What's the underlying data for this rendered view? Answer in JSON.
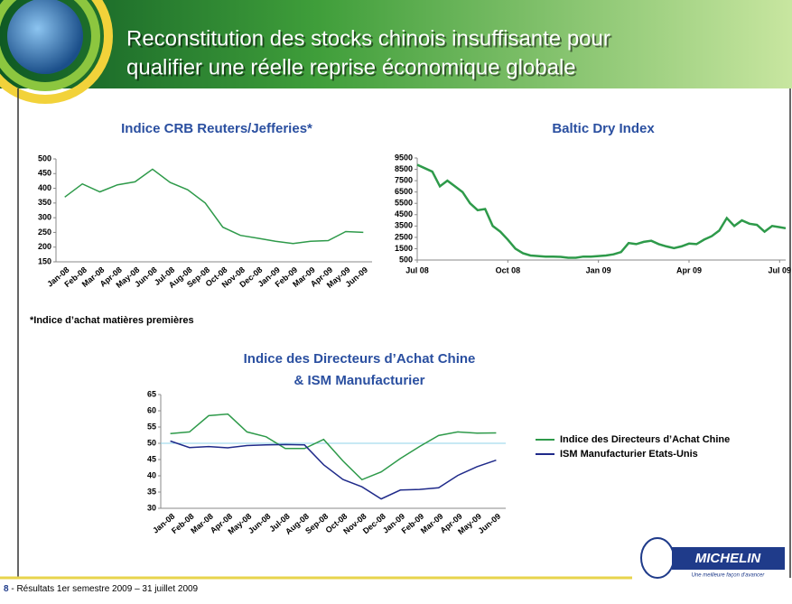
{
  "header": {
    "title_lines": [
      "Reconstitution des stocks chinois insuffisante pour",
      "qualifier  une réelle reprise économique globale"
    ]
  },
  "footnote": "*Indice d’achat matières premières",
  "footer": {
    "page": "8",
    "text": " - Résultats 1er semestre  2009 – 31 juillet 2009"
  },
  "logo": {
    "brand": "MICHELIN",
    "tagline": "Une meilleure façon d'avancer"
  },
  "chart_data": [
    {
      "type": "line",
      "title": "Indice CRB Reuters/Jefferies*",
      "categories": [
        "Jan-08",
        "Feb-08",
        "Mar-08",
        "Apr-08",
        "May-08",
        "Jun-08",
        "Jul-08",
        "Aug-08",
        "Sep-08",
        "Oct-08",
        "Nov-08",
        "Dec-08",
        "Jan-09",
        "Feb-09",
        "Mar-09",
        "Apr-09",
        "May-09",
        "Jun-09"
      ],
      "series": [
        {
          "color": "#2e9a4a",
          "values": [
            370,
            415,
            388,
            412,
            422,
            465,
            420,
            395,
            350,
            268,
            240,
            230,
            220,
            212,
            220,
            222,
            253,
            250
          ]
        }
      ],
      "ylim": [
        150,
        500
      ],
      "yticks": [
        150,
        200,
        250,
        300,
        350,
        400,
        450,
        500
      ]
    },
    {
      "type": "line",
      "title": "Baltic Dry Index",
      "x": [
        0,
        0.25,
        0.5,
        0.75,
        1,
        1.25,
        1.5,
        1.75,
        2,
        2.25,
        2.5,
        2.75,
        3,
        3.25,
        3.5,
        3.75,
        4,
        4.25,
        4.5,
        4.75,
        5,
        5.25,
        5.5,
        5.75,
        6,
        6.25,
        6.5,
        6.75,
        7,
        7.25,
        7.5,
        7.75,
        8,
        8.25,
        8.5,
        8.75,
        9,
        9.25,
        9.5,
        9.75,
        10,
        10.25,
        10.5,
        10.75,
        11,
        11.25,
        11.5,
        11.75,
        12,
        12.2
      ],
      "series": [
        {
          "color": "#2e9a4a",
          "values": [
            8900,
            8600,
            8300,
            7000,
            7500,
            7000,
            6500,
            5500,
            4900,
            5000,
            3500,
            3000,
            2300,
            1500,
            1100,
            900,
            850,
            800,
            800,
            780,
            700,
            700,
            800,
            800,
            850,
            900,
            1000,
            1200,
            2000,
            1900,
            2100,
            2200,
            1900,
            1700,
            1550,
            1700,
            1950,
            1900,
            2300,
            2600,
            3100,
            4200,
            3500,
            4000,
            3700,
            3600,
            3000,
            3500,
            3400,
            3300
          ]
        }
      ],
      "xlim": [
        0,
        12.2
      ],
      "xticks": [
        {
          "value": 0,
          "label": "Jul 08"
        },
        {
          "value": 3,
          "label": "Oct 08"
        },
        {
          "value": 6,
          "label": "Jan 09"
        },
        {
          "value": 9,
          "label": "Apr 09"
        },
        {
          "value": 12,
          "label": "Jul 09"
        }
      ],
      "ylim": [
        500,
        9500
      ],
      "yticks": [
        500,
        1500,
        2500,
        3500,
        4500,
        5500,
        6500,
        7500,
        8500,
        9500
      ]
    },
    {
      "type": "line",
      "title": [
        "Indice des Directeurs d’Achat Chine",
        "& ISM Manufacturier"
      ],
      "categories": [
        "Jan-08",
        "Feb-08",
        "Mar-08",
        "Apr-08",
        "May-08",
        "Jun-08",
        "Jul-08",
        "Aug-08",
        "Sep-08",
        "Oct-08",
        "Nov-08",
        "Dec-08",
        "Jan-09",
        "Feb-09",
        "Mar-09",
        "Apr-09",
        "May-09",
        "Jun-09"
      ],
      "series": [
        {
          "name": "Indice des Directeurs d’Achat Chine",
          "color": "#2e9a4a",
          "values": [
            53,
            53.5,
            58.5,
            59,
            53.5,
            52,
            48.4,
            48.4,
            51.2,
            44.6,
            38.8,
            41.2,
            45.3,
            49,
            52.4,
            53.5,
            53.1,
            53.2
          ]
        },
        {
          "name": "ISM Manufacturier Etats-Unis",
          "color": "#1f2a8a",
          "values": [
            50.7,
            48.7,
            49,
            48.6,
            49.3,
            49.5,
            49.6,
            49.5,
            43.4,
            38.9,
            36.6,
            32.9,
            35.6,
            35.8,
            36.3,
            40.1,
            42.8,
            44.8
          ]
        }
      ],
      "reference_line": 50,
      "reference_color": "#8fd3e8",
      "ylim": [
        30,
        65
      ],
      "yticks": [
        30,
        35,
        40,
        45,
        50,
        55,
        60,
        65
      ],
      "legend": "right"
    }
  ]
}
